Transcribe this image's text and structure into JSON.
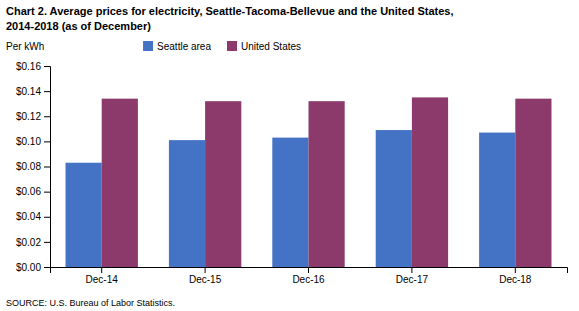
{
  "chart_data": {
    "type": "bar",
    "title": "Chart 2. Average prices for electricity, Seattle-Tacoma-Bellevue and the United States,",
    "subtitle": "2014-2018  (as of December)",
    "ylabel": "Per kWh",
    "annotations": [
      "SOURCE: U.S. Bureau of Labor Statistics."
    ],
    "categories": [
      "Dec-14",
      "Dec-15",
      "Dec-16",
      "Dec-17",
      "Dec-18"
    ],
    "series": [
      {
        "name": "Seattle area",
        "color": "#4472C4",
        "values": [
          0.083,
          0.101,
          0.103,
          0.109,
          0.107
        ]
      },
      {
        "name": "United States",
        "color": "#8B3A6B",
        "values": [
          0.134,
          0.132,
          0.132,
          0.135,
          0.134
        ]
      }
    ],
    "ylim": [
      0.0,
      0.16
    ],
    "yticks": [
      {
        "value": 0.0,
        "label": "$0.00"
      },
      {
        "value": 0.02,
        "label": "$0.02"
      },
      {
        "value": 0.04,
        "label": "$0.04"
      },
      {
        "value": 0.06,
        "label": "$0.06"
      },
      {
        "value": 0.08,
        "label": "$0.08"
      },
      {
        "value": 0.1,
        "label": "$0.10"
      },
      {
        "value": 0.12,
        "label": "$0.12"
      },
      {
        "value": 0.14,
        "label": "$0.14"
      },
      {
        "value": 0.16,
        "label": "$0.16"
      }
    ],
    "grid": false,
    "legend": "upper left"
  }
}
